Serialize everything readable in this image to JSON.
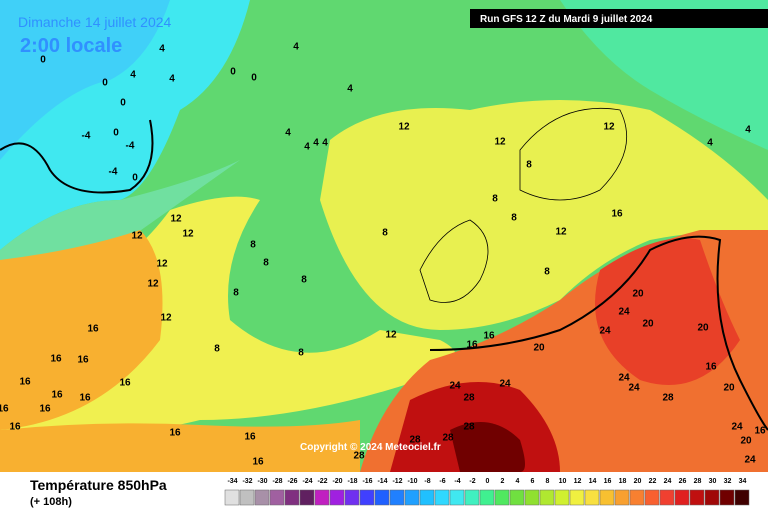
{
  "header": {
    "date": "Dimanche 14 juillet 2024",
    "time": "2:00 locale",
    "run": "Run GFS 12 Z du Mardi 9 juillet 2024"
  },
  "copyright": "Copyright © 2024 Meteociel.fr",
  "footer": {
    "title": "Température 850hPa",
    "lead": "(+ 108h)"
  },
  "legend": {
    "values": [
      -34,
      -32,
      -30,
      -28,
      -26,
      -24,
      -22,
      -20,
      -18,
      -16,
      -14,
      -12,
      -10,
      -8,
      -6,
      -4,
      -2,
      0,
      2,
      4,
      6,
      8,
      10,
      12,
      14,
      16,
      18,
      20,
      22,
      24,
      26,
      28,
      30,
      32,
      34
    ],
    "colors": [
      "#e0e0e0",
      "#c0c0c0",
      "#a890a8",
      "#a060a0",
      "#803080",
      "#602060",
      "#c020c0",
      "#a020e0",
      "#7030f0",
      "#4040ff",
      "#2060ff",
      "#2080ff",
      "#20a0ff",
      "#20c0ff",
      "#30d8ff",
      "#40e8f0",
      "#40f0c0",
      "#40f090",
      "#50e860",
      "#70e040",
      "#90e030",
      "#b0e830",
      "#d0f030",
      "#f0f040",
      "#f8e040",
      "#f8c030",
      "#f8a030",
      "#f88030",
      "#f86030",
      "#f04030",
      "#e02020",
      "#c01010",
      "#a00808",
      "#700000",
      "#400000"
    ]
  },
  "map": {
    "contour_labels": [
      "4",
      "4",
      "0",
      "0",
      "4",
      "4",
      "0",
      "0",
      "4",
      "0",
      "-4",
      "0",
      "-4",
      "-4",
      "0",
      "4",
      "4",
      "4",
      "4",
      "12",
      "12",
      "12",
      "4",
      "4",
      "8",
      "8",
      "8",
      "16",
      "12",
      "12",
      "12",
      "12",
      "12",
      "12",
      "8",
      "8",
      "8",
      "8",
      "8",
      "8",
      "8",
      "12",
      "16",
      "16",
      "20",
      "24",
      "24",
      "28",
      "28",
      "28",
      "28",
      "28",
      "16",
      "16",
      "16",
      "16",
      "16",
      "16",
      "16",
      "16",
      "16",
      "16",
      "16",
      "16",
      "20",
      "24",
      "20",
      "24",
      "20",
      "16",
      "24",
      "24",
      "20",
      "28",
      "24",
      "20",
      "16",
      "24",
      "16",
      "8",
      "12"
    ]
  }
}
